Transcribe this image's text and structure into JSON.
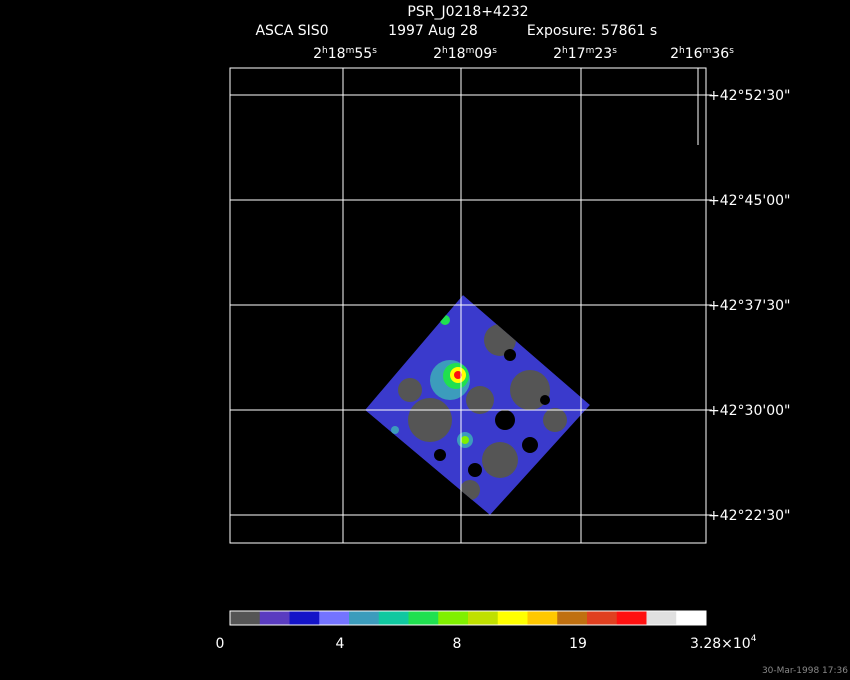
{
  "header": {
    "title": "PSR_J0218+4232",
    "subtitle": [
      "ASCA SIS0",
      "1997 Aug 28",
      "Exposure: 57861 s"
    ]
  },
  "ra_labels": [
    [
      "2",
      "h",
      "18",
      "m",
      "55",
      "s"
    ],
    [
      "2",
      "h",
      "18",
      "m",
      "09",
      "s"
    ],
    [
      "2",
      "h",
      "17",
      "m",
      "23",
      "s"
    ],
    [
      "2",
      "h",
      "16",
      "m",
      "36",
      "s"
    ]
  ],
  "dec_labels": [
    "+42°52'30\"",
    "+42°45'00\"",
    "+42°37'30\"",
    "+42°30'00\"",
    "+42°22'30\""
  ],
  "colorbar": {
    "colors": [
      "#555555",
      "#5a3cc0",
      "#1414c8",
      "#7474ff",
      "#3c9cbc",
      "#10c8a0",
      "#20e050",
      "#80f000",
      "#c0e000",
      "#ffff00",
      "#ffc800",
      "#c07010",
      "#e04020",
      "#ff1010",
      "#e0e0e0",
      "#ffffff"
    ],
    "labels": [
      "0",
      "4",
      "8",
      "19"
    ],
    "max_label": {
      "base": "3.28×10",
      "exponent": "4"
    }
  },
  "timestamp": "30-Mar-1998 17:36"
}
